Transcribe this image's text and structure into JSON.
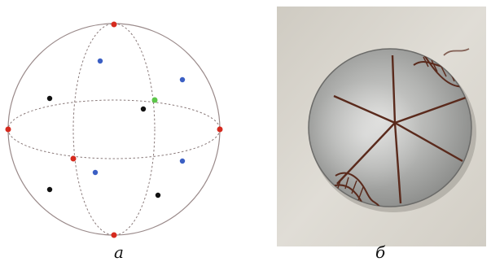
{
  "figure": {
    "panel_a": {
      "caption": "а",
      "colors": {
        "outline": "#9a8a8a",
        "axis_point": "#d62a1e",
        "blue_point": "#3b5fc4",
        "black_point": "#111111",
        "green_point": "#5cc64a"
      }
    },
    "panel_b": {
      "caption": "б",
      "colors": {
        "background": "#d9d5cc",
        "disk": "#b9b9b6",
        "engraving": "#5a2a1c"
      }
    }
  }
}
